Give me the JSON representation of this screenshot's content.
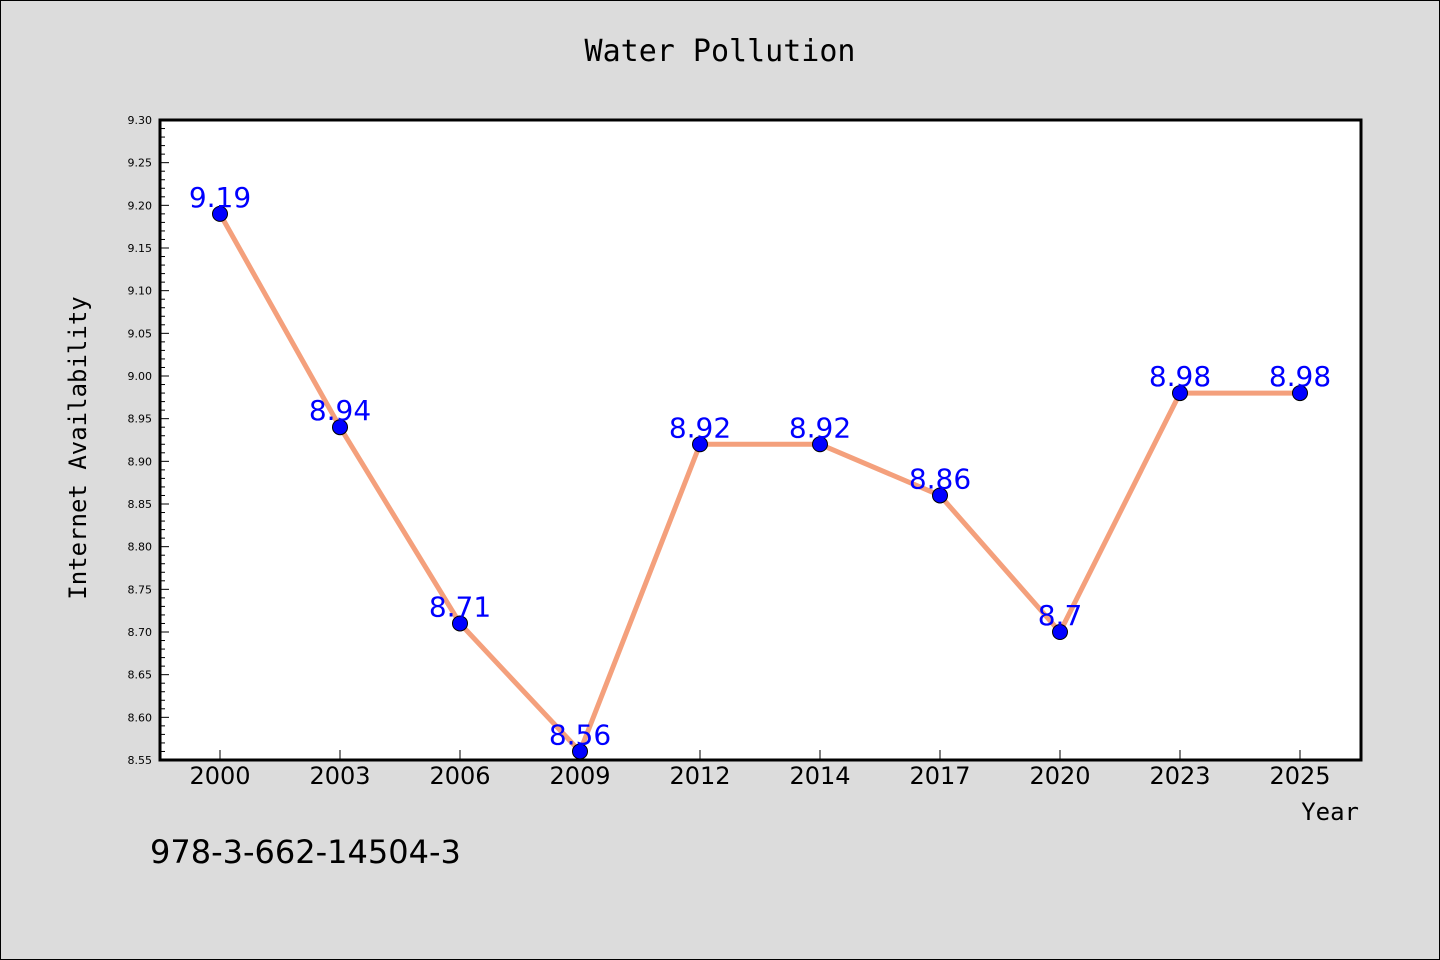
{
  "chart_data": {
    "type": "line",
    "title": "Water Pollution",
    "xlabel": "Year",
    "ylabel": "Internet Availability",
    "categories": [
      "2000",
      "2003",
      "2006",
      "2009",
      "2012",
      "2014",
      "2017",
      "2020",
      "2023",
      "2025"
    ],
    "series": [
      {
        "values": [
          9.19,
          8.94,
          8.71,
          8.56,
          8.92,
          8.92,
          8.86,
          8.7,
          8.98,
          8.98
        ],
        "labels": [
          "9.19",
          "8.94",
          "8.71",
          "8.56",
          "8.92",
          "8.92",
          "8.86",
          "8.7",
          "8.98",
          "8.98"
        ],
        "line_color": "#f4a07c",
        "marker_color": "#0000ff"
      }
    ],
    "ylim": [
      8.55,
      9.3
    ],
    "yticks": [
      "8.55",
      "8.60",
      "8.65",
      "8.70",
      "8.75",
      "8.80",
      "8.85",
      "8.90",
      "8.95",
      "9.00",
      "9.05",
      "9.10",
      "9.15",
      "9.20",
      "9.25",
      "9.30"
    ],
    "grid": false,
    "background": "#dcdcdc",
    "plot_background": "#ffffff"
  },
  "annotation": "978-3-662-14504-3"
}
